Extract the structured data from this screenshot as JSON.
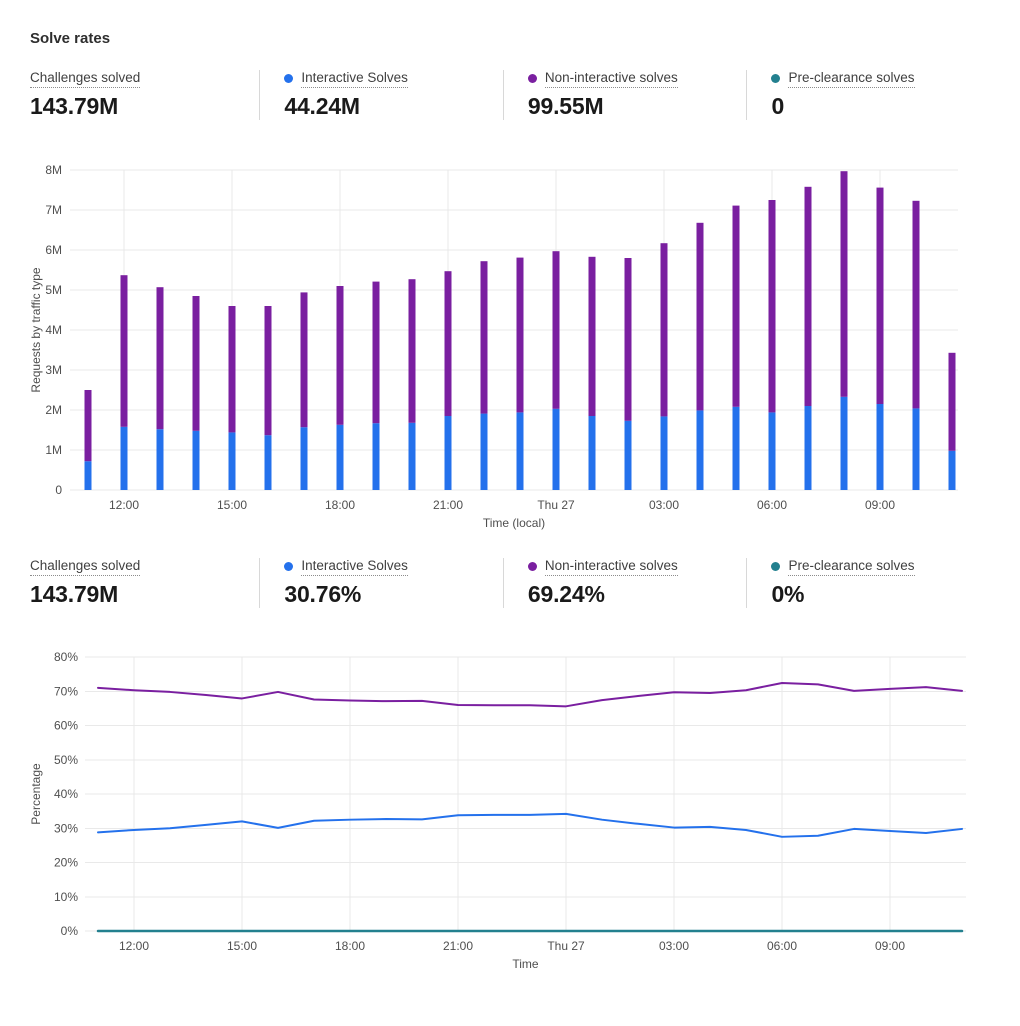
{
  "title": "Solve rates",
  "colors": {
    "interactive": "#2471EC",
    "non_interactive": "#7A1FA0",
    "pre_clearance": "#23808F",
    "grid": "#E9E9E9",
    "divider": "#D8D8D8"
  },
  "stats_top": {
    "items": [
      {
        "label": "Challenges solved",
        "value": "143.79M"
      },
      {
        "label": "Interactive Solves",
        "value": "44.24M",
        "dot": "interactive"
      },
      {
        "label": "Non-interactive solves",
        "value": "99.55M",
        "dot": "non_interactive"
      },
      {
        "label": "Pre-clearance solves",
        "value": "0",
        "dot": "pre_clearance"
      }
    ]
  },
  "stats_bottom": {
    "items": [
      {
        "label": "Challenges solved",
        "value": "143.79M"
      },
      {
        "label": "Interactive Solves",
        "value": "30.76%",
        "dot": "interactive"
      },
      {
        "label": "Non-interactive solves",
        "value": "69.24%",
        "dot": "non_interactive"
      },
      {
        "label": "Pre-clearance solves",
        "value": "0%",
        "dot": "pre_clearance"
      }
    ]
  },
  "chart_data": [
    {
      "type": "bar",
      "stacked": true,
      "title": "",
      "xlabel": "Time (local)",
      "ylabel": "Requests by traffic type",
      "unit": "M",
      "ylim": [
        0,
        8
      ],
      "yticks": [
        {
          "v": 0,
          "label": "0"
        },
        {
          "v": 1,
          "label": "1M"
        },
        {
          "v": 2,
          "label": "2M"
        },
        {
          "v": 3,
          "label": "3M"
        },
        {
          "v": 4,
          "label": "4M"
        },
        {
          "v": 5,
          "label": "5M"
        },
        {
          "v": 6,
          "label": "6M"
        },
        {
          "v": 7,
          "label": "7M"
        },
        {
          "v": 8,
          "label": "8M"
        }
      ],
      "categories": [
        "11:00",
        "12:00",
        "13:00",
        "14:00",
        "15:00",
        "16:00",
        "17:00",
        "18:00",
        "19:00",
        "20:00",
        "21:00",
        "22:00",
        "23:00",
        "Thu 27",
        "01:00",
        "02:00",
        "03:00",
        "04:00",
        "05:00",
        "06:00",
        "07:00",
        "08:00",
        "09:00",
        "10:00",
        "11:00"
      ],
      "tick_indices": [
        1,
        4,
        7,
        10,
        13,
        16,
        19,
        22
      ],
      "grid": true,
      "legend_position": "none",
      "series": [
        {
          "name": "Interactive Solves",
          "color_key": "interactive",
          "values": [
            0.72,
            1.58,
            1.52,
            1.48,
            1.44,
            1.37,
            1.57,
            1.63,
            1.67,
            1.68,
            1.85,
            1.91,
            1.94,
            2.03,
            1.85,
            1.73,
            1.84,
            1.99,
            2.08,
            1.94,
            2.1,
            2.33,
            2.15,
            2.04,
            0.98
          ]
        },
        {
          "name": "Non-interactive solves",
          "color_key": "non_interactive",
          "values": [
            1.78,
            3.79,
            3.55,
            3.37,
            3.16,
            3.23,
            3.37,
            3.47,
            3.54,
            3.59,
            3.62,
            3.81,
            3.87,
            3.94,
            3.98,
            4.07,
            4.33,
            4.69,
            5.03,
            5.31,
            5.48,
            5.64,
            5.41,
            5.19,
            2.45
          ]
        }
      ]
    },
    {
      "type": "line",
      "title": "",
      "xlabel": "Time",
      "ylabel": "Percentage",
      "unit": "%",
      "ylim": [
        0,
        80
      ],
      "yticks": [
        {
          "v": 0,
          "label": "0%"
        },
        {
          "v": 10,
          "label": "10%"
        },
        {
          "v": 20,
          "label": "20%"
        },
        {
          "v": 30,
          "label": "30%"
        },
        {
          "v": 40,
          "label": "40%"
        },
        {
          "v": 50,
          "label": "50%"
        },
        {
          "v": 60,
          "label": "60%"
        },
        {
          "v": 70,
          "label": "70%"
        },
        {
          "v": 80,
          "label": "80%"
        }
      ],
      "categories": [
        "11:00",
        "12:00",
        "13:00",
        "14:00",
        "15:00",
        "16:00",
        "17:00",
        "18:00",
        "19:00",
        "20:00",
        "21:00",
        "22:00",
        "23:00",
        "Thu 27",
        "01:00",
        "02:00",
        "03:00",
        "04:00",
        "05:00",
        "06:00",
        "07:00",
        "08:00",
        "09:00",
        "10:00",
        "11:00"
      ],
      "tick_indices": [
        1,
        4,
        7,
        10,
        13,
        16,
        19,
        22
      ],
      "grid": true,
      "legend_position": "none",
      "series": [
        {
          "name": "Non-interactive solves",
          "color_key": "non_interactive",
          "values": [
            71.0,
            70.3,
            69.8,
            68.9,
            67.9,
            69.8,
            67.6,
            67.3,
            67.1,
            67.2,
            66.0,
            65.9,
            65.9,
            65.6,
            67.4,
            68.6,
            69.7,
            69.5,
            70.3,
            72.4,
            72.0,
            70.1,
            70.7,
            71.2,
            70.1
          ]
        },
        {
          "name": "Interactive Solves",
          "color_key": "interactive",
          "values": [
            28.8,
            29.5,
            30.0,
            31.0,
            32.0,
            30.1,
            32.2,
            32.5,
            32.7,
            32.6,
            33.8,
            33.9,
            33.9,
            34.2,
            32.5,
            31.3,
            30.2,
            30.4,
            29.5,
            27.5,
            27.8,
            29.8,
            29.2,
            28.6,
            29.8
          ]
        },
        {
          "name": "Pre-clearance solves",
          "color_key": "pre_clearance",
          "values": [
            0,
            0,
            0,
            0,
            0,
            0,
            0,
            0,
            0,
            0,
            0,
            0,
            0,
            0,
            0,
            0,
            0,
            0,
            0,
            0,
            0,
            0,
            0,
            0,
            0
          ]
        }
      ]
    }
  ]
}
